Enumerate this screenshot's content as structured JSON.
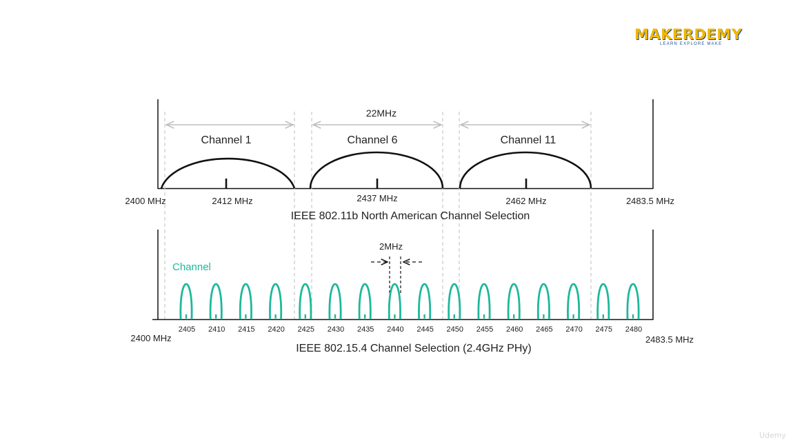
{
  "brand": {
    "name": "MAKERDEMY",
    "tagline": "LEARN EXPLORE MAKE",
    "watermark": "Udemy"
  },
  "colors": {
    "channel": "#1db89a",
    "line": "#111111",
    "guide": "#c8c8c8"
  },
  "wifi": {
    "title": "IEEE 802.11b North American Channel Selection",
    "width_label": "22MHz",
    "start_label": "2400 MHz",
    "end_label": "2483.5 MHz",
    "channels": [
      {
        "name": "Channel 1",
        "center_label": "2412 MHz"
      },
      {
        "name": "Channel 6",
        "center_label": "2437 MHz"
      },
      {
        "name": "Channel 11",
        "center_label": "2462 MHz"
      }
    ]
  },
  "zigbee": {
    "title": "IEEE 802.15.4 Channel Selection (2.4GHz PHy)",
    "legend_label": "Channel",
    "spacing_label": "2MHz",
    "start_label": "2400 MHz",
    "end_label": "2483.5 MHz",
    "frequencies": [
      "2405",
      "2410",
      "2415",
      "2420",
      "2425",
      "2430",
      "2435",
      "2440",
      "2445",
      "2450",
      "2455",
      "2460",
      "2465",
      "2470",
      "2475",
      "2480"
    ]
  }
}
